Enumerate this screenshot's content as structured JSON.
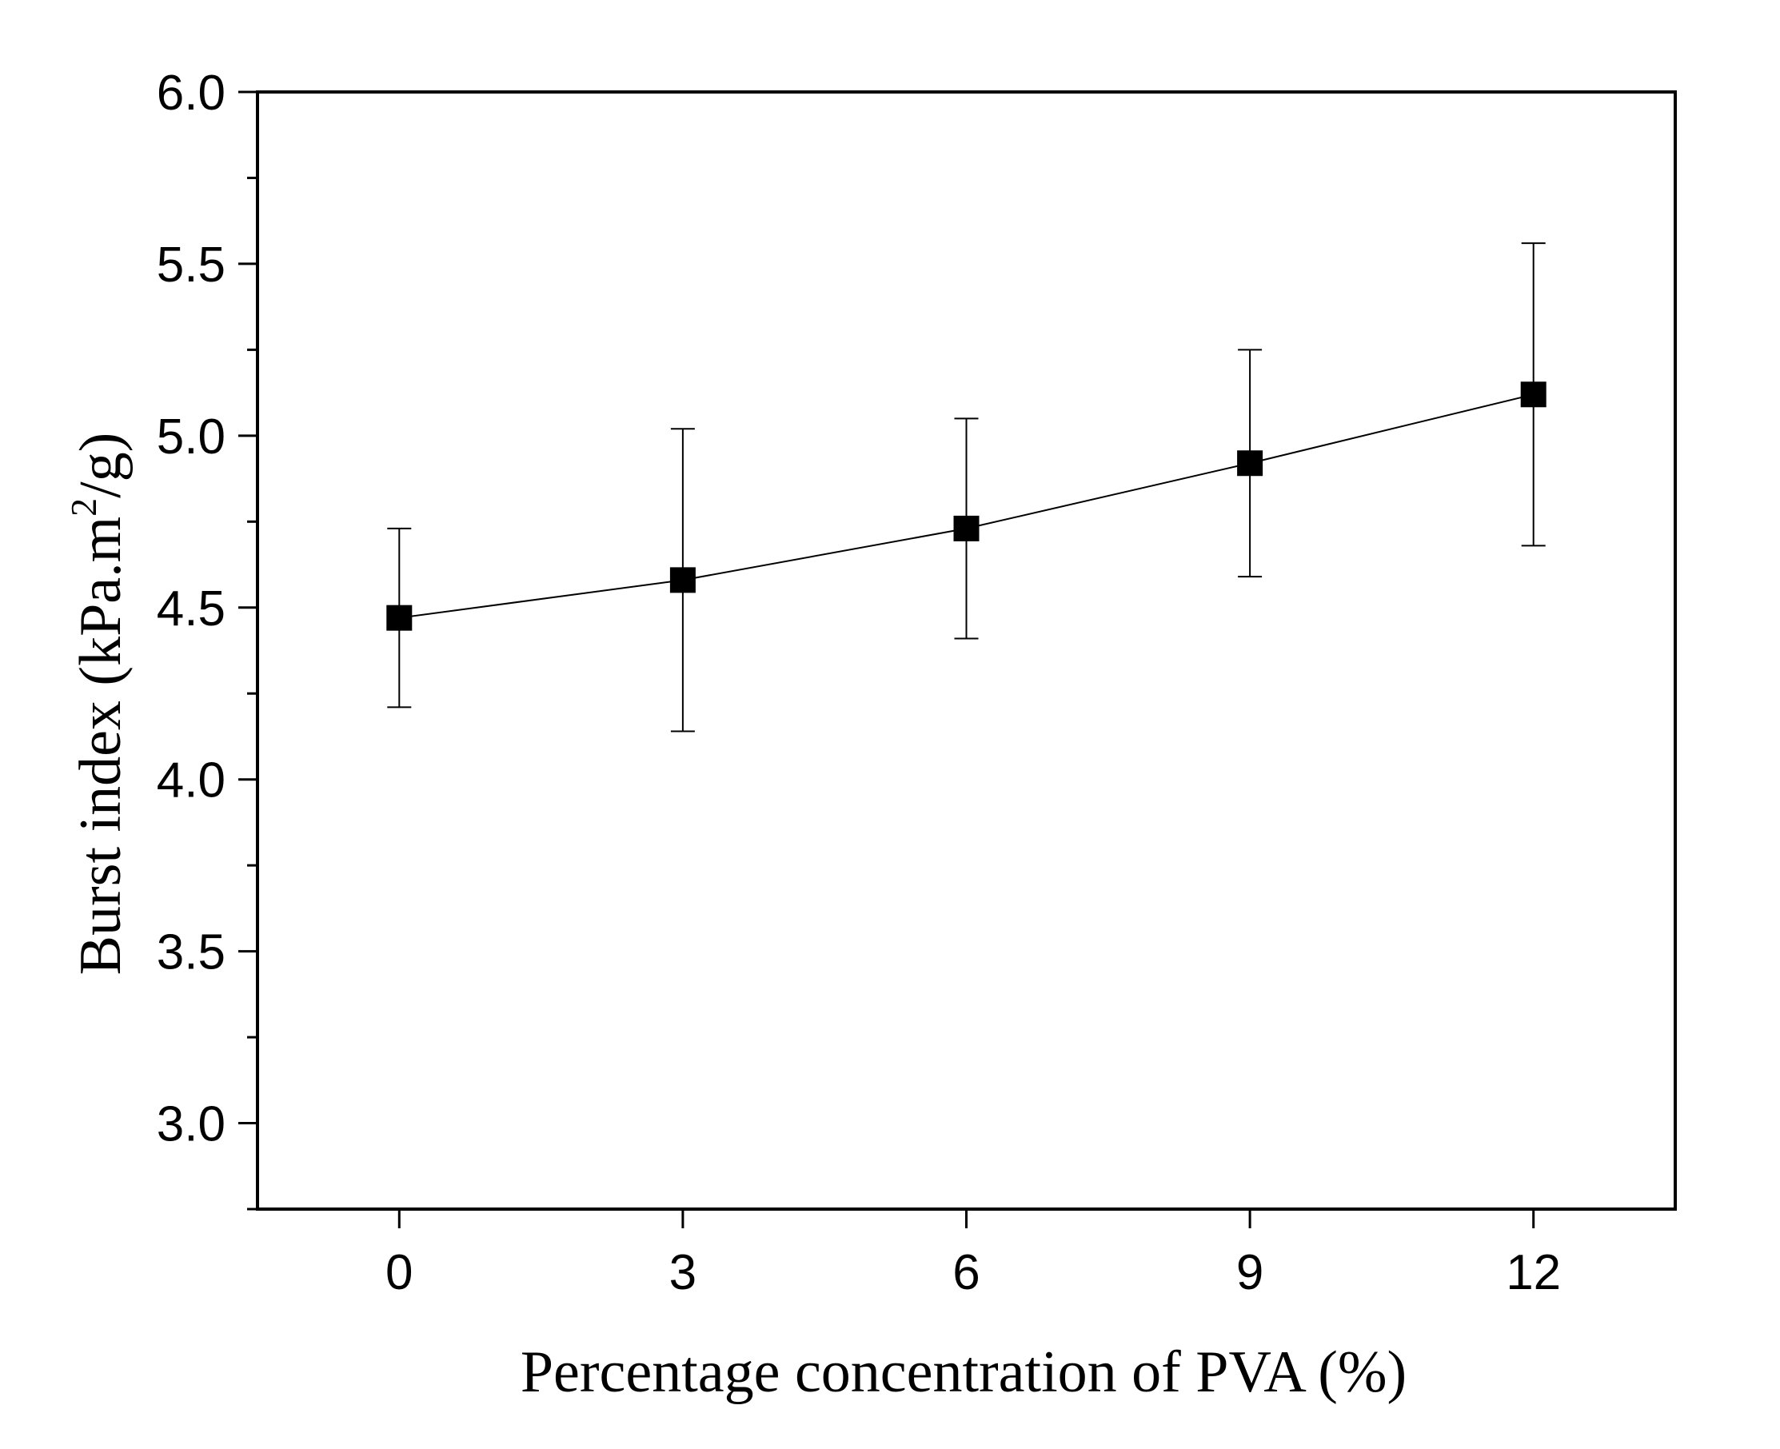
{
  "chart_data": {
    "type": "line",
    "title": "",
    "xlabel": "Percentage concentration of PVA (%)",
    "ylabel": {
      "prefix": "Burst index (kPa.m",
      "superscript": "2",
      "suffix": "/g)"
    },
    "xlim": [
      -1.5,
      13.5
    ],
    "ylim": [
      2.75,
      6.0
    ],
    "x_ticks": [
      0,
      3,
      6,
      9,
      12
    ],
    "x_tick_labels": [
      "0",
      "3",
      "6",
      "9",
      "12"
    ],
    "y_ticks": [
      3.0,
      3.5,
      4.0,
      4.5,
      5.0,
      5.5,
      6.0
    ],
    "y_tick_labels": [
      "3.0",
      "3.5",
      "4.0",
      "4.5",
      "5.0",
      "5.5",
      "6.0"
    ],
    "y_minor_ticks": [
      2.75,
      3.25,
      3.75,
      4.25,
      4.75,
      5.25,
      5.75
    ],
    "grid": false,
    "series": [
      {
        "name": "Burst index",
        "x": [
          0,
          3,
          6,
          9,
          12
        ],
        "y": [
          4.47,
          4.58,
          4.73,
          4.92,
          5.12
        ],
        "err_low": [
          4.21,
          4.14,
          4.41,
          4.59,
          4.68
        ],
        "err_high": [
          4.73,
          5.02,
          5.05,
          5.25,
          5.56
        ],
        "marker": "square",
        "color": "#000000"
      }
    ]
  }
}
